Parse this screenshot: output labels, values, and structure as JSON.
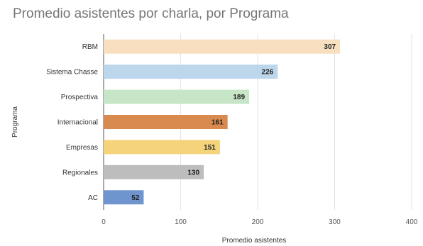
{
  "chart_data": {
    "type": "bar",
    "orientation": "horizontal",
    "title": "Promedio asistentes por charla, por Programa",
    "xlabel": "Promedio asistentes",
    "ylabel": "Programa",
    "xlim": [
      0,
      400
    ],
    "xticks": [
      0,
      100,
      200,
      300,
      400
    ],
    "grid": true,
    "legend": "none",
    "categories": [
      "RBM",
      "Sistema Chasse",
      "Prospectiva",
      "Internacional",
      "Empresas",
      "Regionales",
      "AC"
    ],
    "values": [
      307,
      226,
      189,
      161,
      151,
      130,
      52
    ],
    "value_labels": [
      "307",
      "226",
      "189",
      "161",
      "151",
      "130",
      "52"
    ],
    "colors": [
      "#f7dfbf",
      "#bcd6ec",
      "#c7e5c7",
      "#d98a4e",
      "#f4d37a",
      "#bdbdbd",
      "#6f95cf"
    ]
  }
}
